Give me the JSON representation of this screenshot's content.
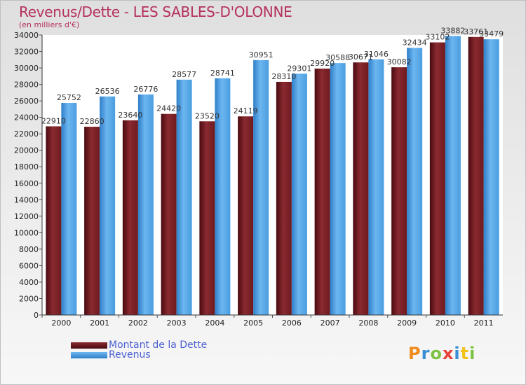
{
  "chart_data": {
    "type": "bar",
    "title": "Revenus/Dette - LES SABLES-D'OLONNE",
    "subtitle": "(en milliers d'€)",
    "categories": [
      "2000",
      "2001",
      "2002",
      "2003",
      "2004",
      "2005",
      "2006",
      "2007",
      "2008",
      "2009",
      "2010",
      "2011"
    ],
    "series": [
      {
        "name": "Montant de la Dette",
        "color": "#6e1a1f",
        "values": [
          22910,
          22860,
          23640,
          24420,
          23520,
          24119,
          28310,
          29920,
          30671,
          30082,
          33102,
          33761
        ],
        "labels": [
          "22910",
          "22860",
          "23640",
          "24420",
          "23520",
          "24119",
          "28310",
          "29920",
          "30671",
          "30082",
          "33102",
          "33761"
        ]
      },
      {
        "name": "Revenus",
        "color": "#4a9de0",
        "values": [
          25752,
          26536,
          26776,
          28577,
          28741,
          30951,
          29301,
          30588,
          31046,
          32434,
          33882,
          33479
        ],
        "labels": [
          "25752",
          "26536",
          "26776",
          "28577",
          "28741",
          "30951",
          "29301",
          "30588",
          "31046",
          "32434",
          "33882",
          "33479"
        ]
      }
    ],
    "ylim": [
      0,
      34000
    ],
    "ytick_step": 2000,
    "xlabel": "",
    "ylabel": "",
    "legend_position": "bottom-left",
    "grid": false
  },
  "brand": {
    "logo_text": "Proxiti"
  }
}
